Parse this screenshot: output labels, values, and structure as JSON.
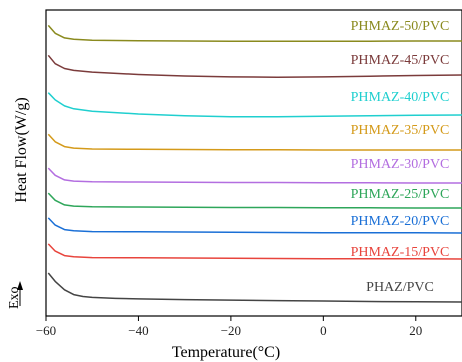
{
  "chart_data": {
    "type": "line",
    "title": "",
    "xlabel": "Temperature(°C)",
    "ylabel": "Heat Flow(W/g)",
    "exo_label": "Exo",
    "xlim": [
      -60,
      30
    ],
    "xticks": [
      -60,
      -40,
      -20,
      0,
      20
    ],
    "xtick_labels": [
      "−60",
      "−40",
      "−20",
      "0",
      "20"
    ],
    "y_ticks_shown": false,
    "grid": false,
    "legend": "series labels printed next to each curve",
    "series": [
      {
        "name": "PHMAZ-50/PVC",
        "color": "#8a8a1e",
        "x": [
          -59.5,
          -58,
          -56,
          -54,
          -50,
          -40,
          -30,
          -20,
          -10,
          0,
          10,
          20,
          30
        ],
        "y": [
          0.98,
          0.65,
          0.46,
          0.4,
          0.36,
          0.34,
          0.33,
          0.32,
          0.32,
          0.32,
          0.32,
          0.33,
          0.33
        ]
      },
      {
        "name": "PHMAZ-45/PVC",
        "color": "#7b3b3b",
        "x": [
          -59.5,
          -58,
          -56,
          -54,
          -50,
          -40,
          -30,
          -20,
          -10,
          0,
          10,
          20,
          30
        ],
        "y": [
          1.1,
          0.75,
          0.55,
          0.47,
          0.4,
          0.3,
          0.24,
          0.2,
          0.19,
          0.2,
          0.23,
          0.26,
          0.28
        ]
      },
      {
        "name": "PHMAZ-40/PVC",
        "color": "#1fcfcf",
        "x": [
          -59.5,
          -58,
          -56,
          -54,
          -50,
          -40,
          -30,
          -20,
          -10,
          0,
          10,
          20,
          30
        ],
        "y": [
          1.15,
          0.85,
          0.6,
          0.48,
          0.38,
          0.26,
          0.19,
          0.15,
          0.15,
          0.17,
          0.19,
          0.21,
          0.22
        ]
      },
      {
        "name": "PHMAZ-35/PVC",
        "color": "#d49a1a",
        "x": [
          -59.5,
          -58,
          -56,
          -54,
          -50,
          -40,
          -30,
          -20,
          -10,
          0,
          10,
          20,
          30
        ],
        "y": [
          0.98,
          0.66,
          0.46,
          0.4,
          0.36,
          0.35,
          0.34,
          0.33,
          0.33,
          0.32,
          0.32,
          0.32,
          0.32
        ]
      },
      {
        "name": "PHMAZ-30/PVC",
        "color": "#b36ee0",
        "x": [
          -59.5,
          -58,
          -56,
          -54,
          -50,
          -40,
          -30,
          -20,
          -10,
          0,
          10,
          20,
          30
        ],
        "y": [
          0.92,
          0.62,
          0.43,
          0.38,
          0.35,
          0.34,
          0.33,
          0.32,
          0.32,
          0.31,
          0.31,
          0.3,
          0.3
        ]
      },
      {
        "name": "PHMAZ-25/PVC",
        "color": "#2ea65a",
        "x": [
          -59.5,
          -58,
          -56,
          -54,
          -50,
          -40,
          -30,
          -20,
          -10,
          0,
          10,
          20,
          30
        ],
        "y": [
          0.92,
          0.62,
          0.43,
          0.38,
          0.35,
          0.34,
          0.33,
          0.32,
          0.32,
          0.31,
          0.31,
          0.3,
          0.3
        ]
      },
      {
        "name": "PHMAZ-20/PVC",
        "color": "#1a6fd6",
        "x": [
          -59.5,
          -58,
          -56,
          -54,
          -50,
          -40,
          -30,
          -20,
          -10,
          0,
          10,
          20,
          30
        ],
        "y": [
          0.92,
          0.62,
          0.43,
          0.38,
          0.35,
          0.34,
          0.33,
          0.32,
          0.31,
          0.3,
          0.3,
          0.3,
          0.29
        ]
      },
      {
        "name": "PHMAZ-15/PVC",
        "color": "#e8443c",
        "x": [
          -59.5,
          -58,
          -56,
          -54,
          -50,
          -40,
          -30,
          -20,
          -10,
          0,
          10,
          20,
          30
        ],
        "y": [
          0.92,
          0.62,
          0.43,
          0.38,
          0.35,
          0.34,
          0.33,
          0.32,
          0.31,
          0.3,
          0.3,
          0.3,
          0.29
        ]
      },
      {
        "name": "PHAZ/PVC",
        "color": "#444444",
        "x": [
          -59.5,
          -58,
          -56,
          -54,
          -52,
          -50,
          -45,
          -40,
          -30,
          -20,
          -10,
          0,
          10,
          20,
          30
        ],
        "y": [
          1.4,
          1.05,
          0.7,
          0.5,
          0.42,
          0.38,
          0.34,
          0.32,
          0.29,
          0.27,
          0.25,
          0.23,
          0.21,
          0.2,
          0.19
        ]
      }
    ]
  }
}
